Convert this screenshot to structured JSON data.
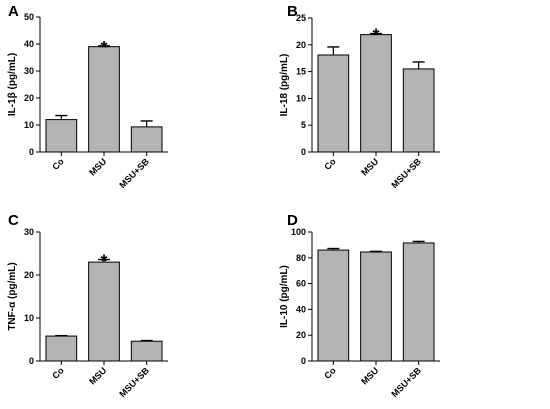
{
  "colors": {
    "bar": "#b3b3b3",
    "stroke": "#000000"
  },
  "chart_data": [
    {
      "type": "bar",
      "panel": "A",
      "ylabel": "IL-1β (pg/mL)",
      "ylim": [
        0,
        50
      ],
      "yticks": [
        0,
        10,
        20,
        30,
        40,
        50
      ],
      "categories": [
        "Co",
        "MSU",
        "MSU+SB"
      ],
      "values": [
        12,
        39,
        9.3
      ],
      "errors": [
        1.5,
        0.3,
        2.2
      ],
      "annotations": [
        "",
        "*",
        ""
      ]
    },
    {
      "type": "bar",
      "panel": "B",
      "ylabel": "IL-18 (pg/mL)",
      "ylim": [
        0,
        25
      ],
      "yticks": [
        0,
        5,
        10,
        15,
        20,
        25
      ],
      "categories": [
        "Co",
        "MSU",
        "MSU+SB"
      ],
      "values": [
        18.1,
        21.9,
        15.5
      ],
      "errors": [
        1.5,
        0.2,
        1.3
      ],
      "annotations": [
        "",
        "*",
        ""
      ]
    },
    {
      "type": "bar",
      "panel": "C",
      "ylabel": "TNF-α (pg/mL)",
      "ylim": [
        0,
        30
      ],
      "yticks": [
        0,
        10,
        20,
        30
      ],
      "categories": [
        "Co",
        "MSU",
        "MSU+SB"
      ],
      "values": [
        5.8,
        23,
        4.6
      ],
      "errors": [
        0.1,
        0.6,
        0.15
      ],
      "annotations": [
        "",
        "*",
        ""
      ]
    },
    {
      "type": "bar",
      "panel": "D",
      "ylabel": "IL-10 (pg/mL)",
      "ylim": [
        0,
        100
      ],
      "yticks": [
        0,
        20,
        40,
        60,
        80,
        100
      ],
      "categories": [
        "Co",
        "MSU",
        "MSU+SB"
      ],
      "values": [
        86,
        84.5,
        91.5
      ],
      "errors": [
        1.2,
        0.5,
        1.2
      ],
      "annotations": [
        "",
        "",
        ""
      ]
    }
  ]
}
